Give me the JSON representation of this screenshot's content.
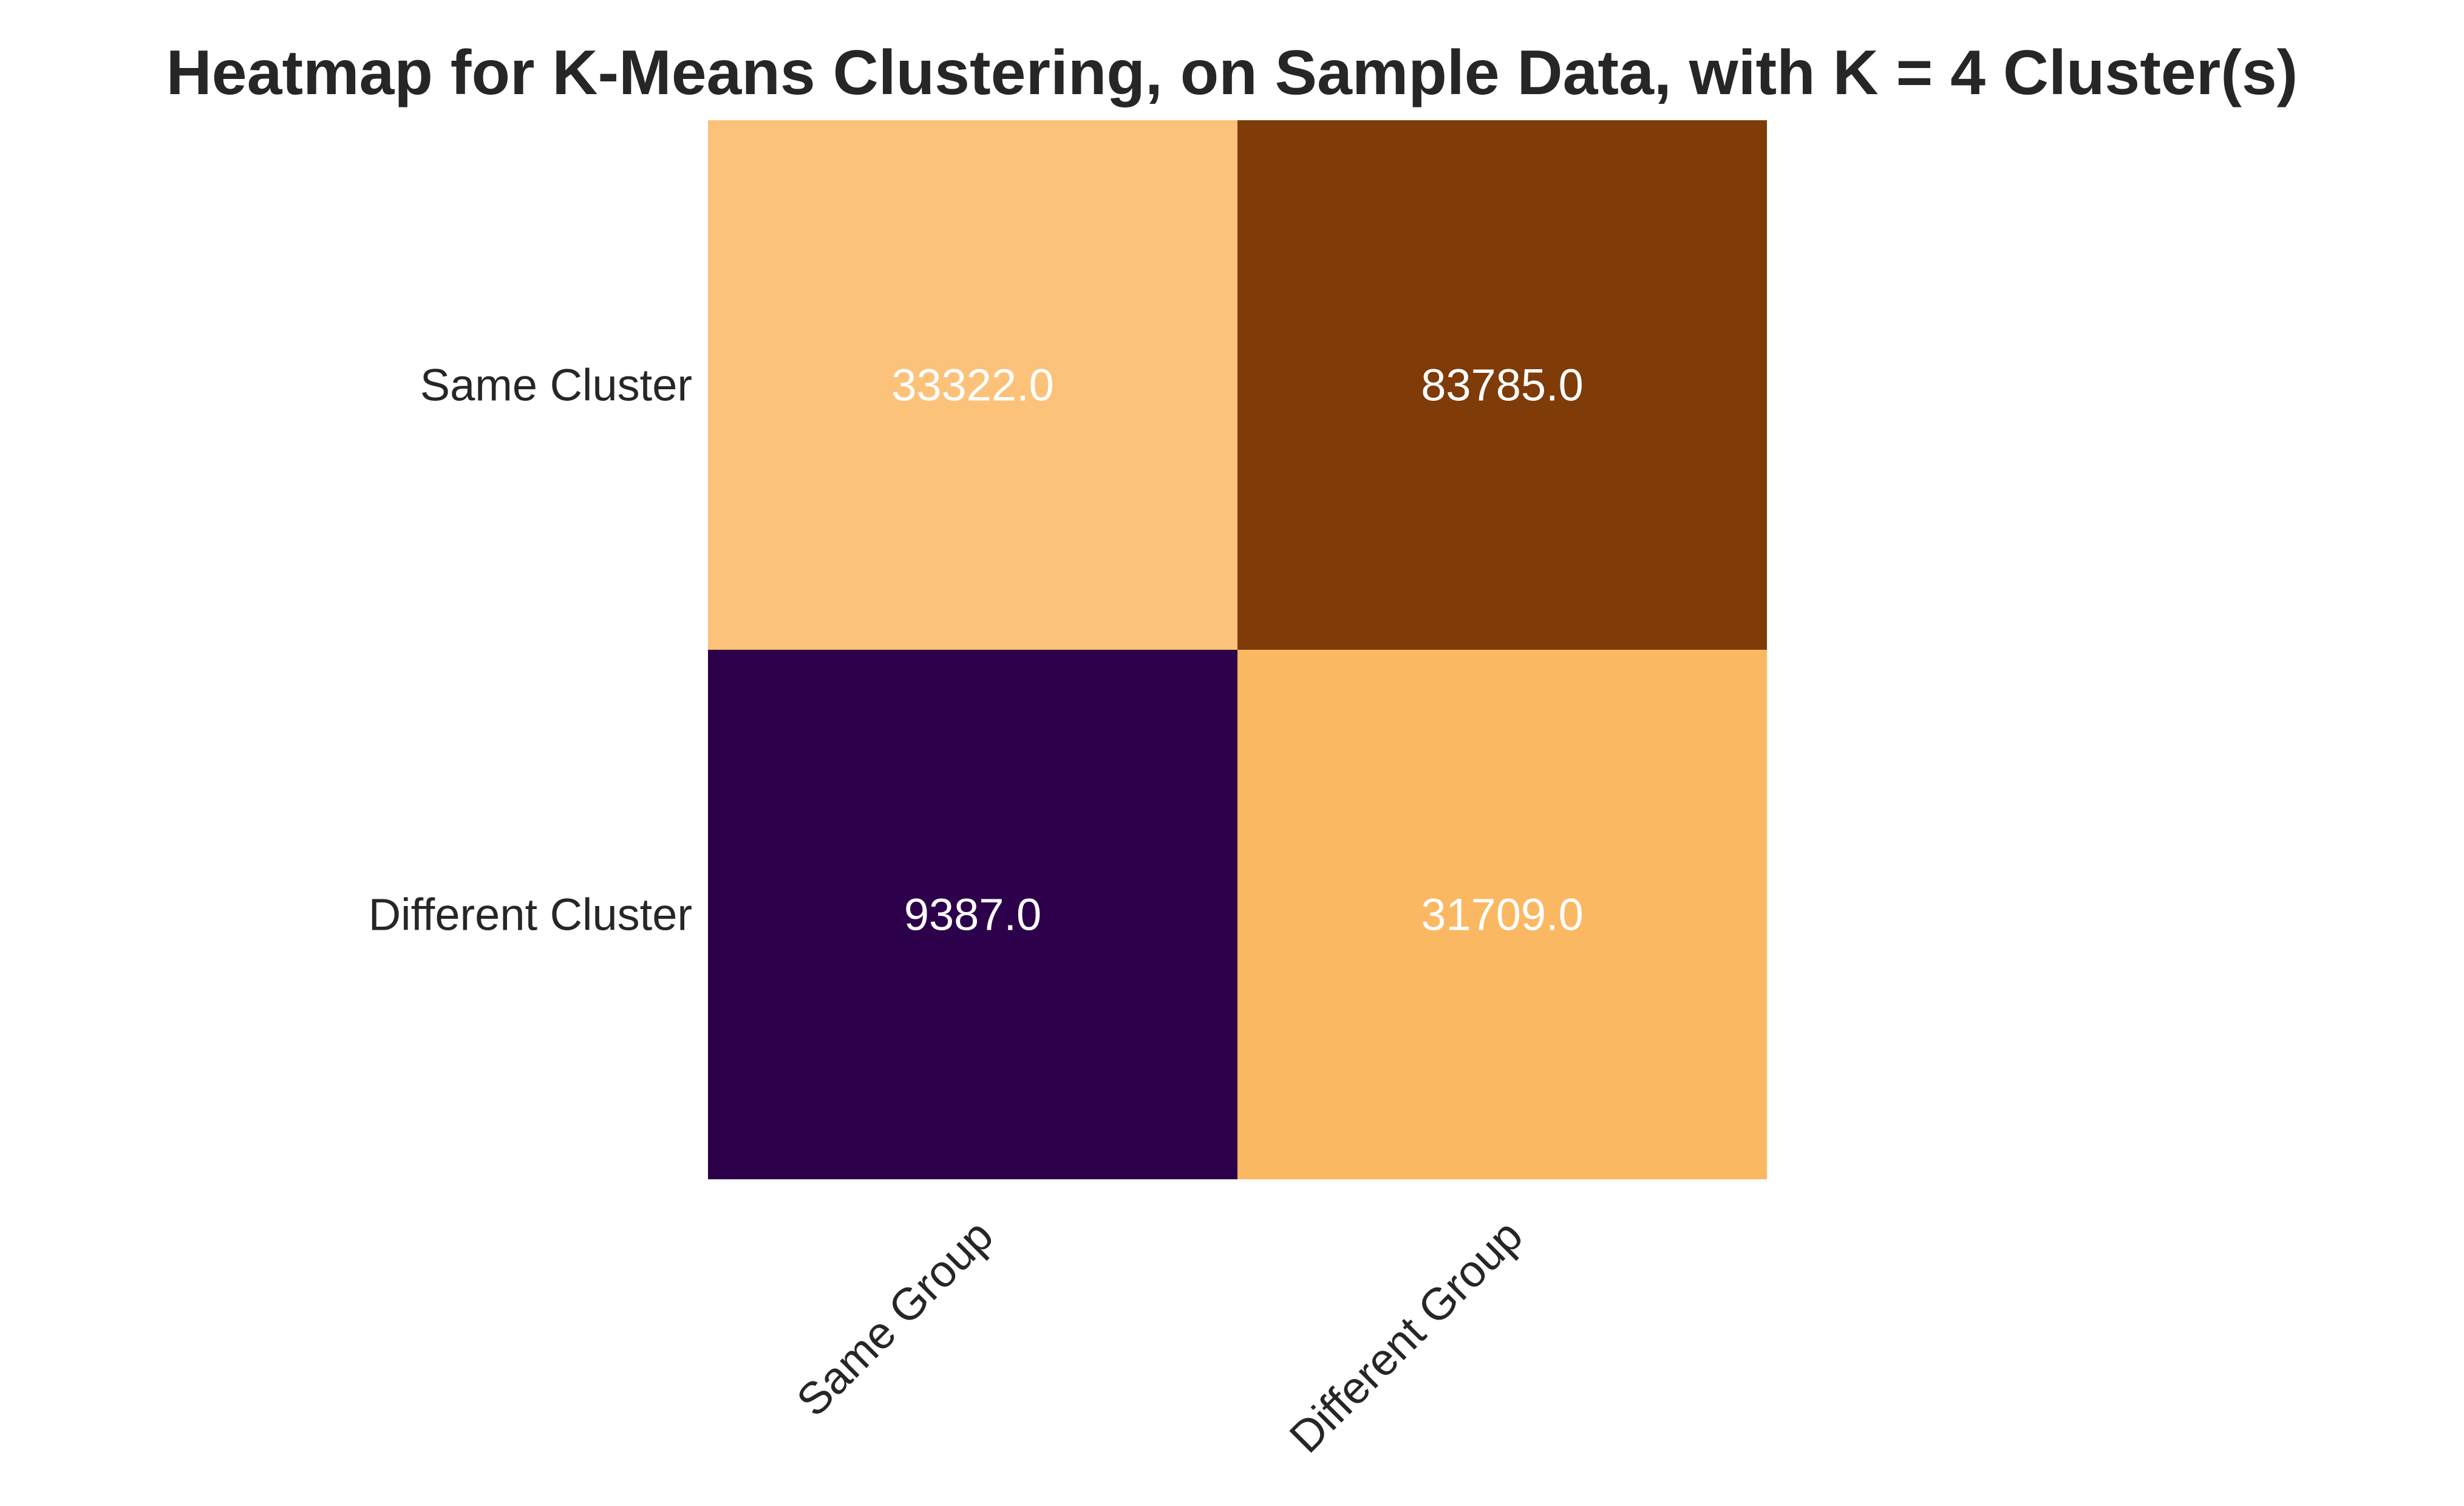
{
  "chart_data": {
    "type": "heatmap",
    "title": "Heatmap for K-Means Clustering, on Sample Data, with K = 4 Cluster(s)",
    "xlabel": "",
    "ylabel": "",
    "x_categories": [
      "Same Group",
      "Different Group"
    ],
    "y_categories": [
      "Same Cluster",
      "Different Cluster"
    ],
    "values": [
      [
        33322.0,
        83785.0
      ],
      [
        9387.0,
        31709.0
      ]
    ],
    "value_labels": [
      [
        "33322.0",
        "83785.0"
      ],
      [
        "9387.0",
        "31709.0"
      ]
    ],
    "colormap": "PuOr",
    "colorbar": false,
    "grid": false,
    "cell_colors": [
      [
        "#fcc279",
        "#7f3b08"
      ],
      [
        "#2d004b",
        "#fbb862"
      ]
    ],
    "annotation_color": "#ffffff",
    "text_color": "#262626"
  }
}
